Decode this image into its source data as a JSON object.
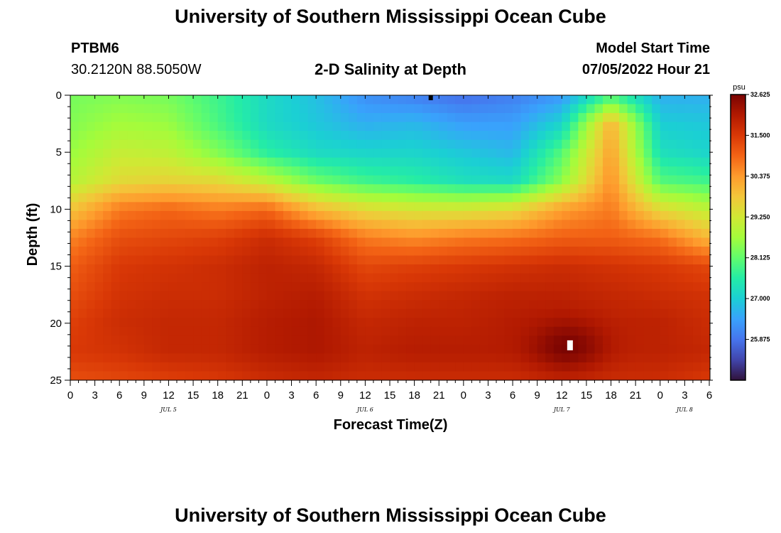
{
  "header": {
    "title": "University of Southern Mississippi Ocean Cube",
    "station": "PTBM6",
    "location": "30.2120N  88.5050W",
    "plot_title": "2-D Salinity at Depth",
    "model_start_label": "Model Start Time",
    "model_start_value": "07/05/2022 Hour 21"
  },
  "footer": {
    "title": "University of Southern Mississippi Ocean Cube"
  },
  "colors": {
    "colormap": [
      "#30123b",
      "#4145ab",
      "#4675ed",
      "#39a2fc",
      "#1bcfd4",
      "#24eca6",
      "#61fc6c",
      "#a4fc3b",
      "#d1e834",
      "#f3c63a",
      "#fe9b2d",
      "#f36315",
      "#d93806",
      "#b11901",
      "#7a0402"
    ]
  },
  "chart_data": {
    "type": "heatmap",
    "title": "2-D Salinity at Depth",
    "xlabel": "Forecast Time(Z)",
    "ylabel": "Depth (ft)",
    "x_range_hours": [
      0,
      78
    ],
    "ylim": [
      0,
      25
    ],
    "y_ticks": [
      "0",
      "5",
      "10",
      "15",
      "20",
      "25"
    ],
    "x_tick_labels": [
      "0",
      "3",
      "6",
      "9",
      "12",
      "15",
      "18",
      "21",
      "0",
      "3",
      "6",
      "9",
      "12",
      "15",
      "18",
      "21",
      "0",
      "3",
      "6",
      "9",
      "12",
      "15",
      "18",
      "21",
      "0",
      "3",
      "6"
    ],
    "date_labels": [
      {
        "label": "JUL 5",
        "hour": 12
      },
      {
        "label": "JUL 6",
        "hour": 36
      },
      {
        "label": "JUL 7",
        "hour": 60
      },
      {
        "label": "JUL 8",
        "hour": 75
      }
    ],
    "colorbar": {
      "unit": "psu",
      "min": 24.75,
      "max": 32.625,
      "tick_labels": [
        "32.625",
        "31.500",
        "30.375",
        "29.250",
        "28.125",
        "27.000",
        "25.875"
      ],
      "tick_values": [
        32.625,
        31.5,
        30.375,
        29.25,
        28.125,
        27.0,
        25.875
      ]
    },
    "grid": {
      "hours": [
        0,
        6,
        12,
        18,
        24,
        30,
        36,
        42,
        48,
        54,
        60,
        66,
        72,
        78
      ],
      "depths": [
        0,
        2.5,
        5,
        7.5,
        10,
        12.5,
        15,
        17.5,
        20,
        22.5,
        25
      ],
      "salinity_psu": [
        [
          28.3,
          28.4,
          28.3,
          27.8,
          27.2,
          26.8,
          26.2,
          26.0,
          25.8,
          26.0,
          26.3,
          27.8,
          26.6,
          26.6
        ],
        [
          28.4,
          28.7,
          28.6,
          27.9,
          27.2,
          26.9,
          26.6,
          26.7,
          26.4,
          26.4,
          27.1,
          30.1,
          27.0,
          26.9
        ],
        [
          28.6,
          29.1,
          29.0,
          28.4,
          27.6,
          27.2,
          27.1,
          27.1,
          26.9,
          26.7,
          28.0,
          30.3,
          27.3,
          27.1
        ],
        [
          28.9,
          29.5,
          29.6,
          29.5,
          29.0,
          28.2,
          27.8,
          27.6,
          27.3,
          27.2,
          28.5,
          30.5,
          28.0,
          27.8
        ],
        [
          29.8,
          30.7,
          30.9,
          30.7,
          30.9,
          30.0,
          29.5,
          29.3,
          29.3,
          29.5,
          30.3,
          30.7,
          29.5,
          29.0
        ],
        [
          30.6,
          31.2,
          31.3,
          31.4,
          31.7,
          31.4,
          30.7,
          30.5,
          30.7,
          30.8,
          31.0,
          31.0,
          30.8,
          30.0
        ],
        [
          31.0,
          31.5,
          31.6,
          31.7,
          31.9,
          31.8,
          31.3,
          31.4,
          31.5,
          31.6,
          31.7,
          31.6,
          31.5,
          31.3
        ],
        [
          31.2,
          31.6,
          31.7,
          31.7,
          31.9,
          32.0,
          31.6,
          31.7,
          31.8,
          31.9,
          31.9,
          31.8,
          31.7,
          31.6
        ],
        [
          31.4,
          31.7,
          31.8,
          31.8,
          32.0,
          32.1,
          31.8,
          31.9,
          31.9,
          32.0,
          32.0,
          31.9,
          31.9,
          31.7
        ],
        [
          31.5,
          31.6,
          31.8,
          31.8,
          32.0,
          32.1,
          31.9,
          32.0,
          32.0,
          32.0,
          32.1,
          31.9,
          31.9,
          31.8
        ],
        [
          31.2,
          31.3,
          31.4,
          31.5,
          31.7,
          31.8,
          31.7,
          31.7,
          31.7,
          31.7,
          31.8,
          31.7,
          31.7,
          31.5
        ]
      ],
      "anomaly_center": {
        "hour": 61,
        "depth": 22,
        "psu": 32.6
      }
    }
  }
}
